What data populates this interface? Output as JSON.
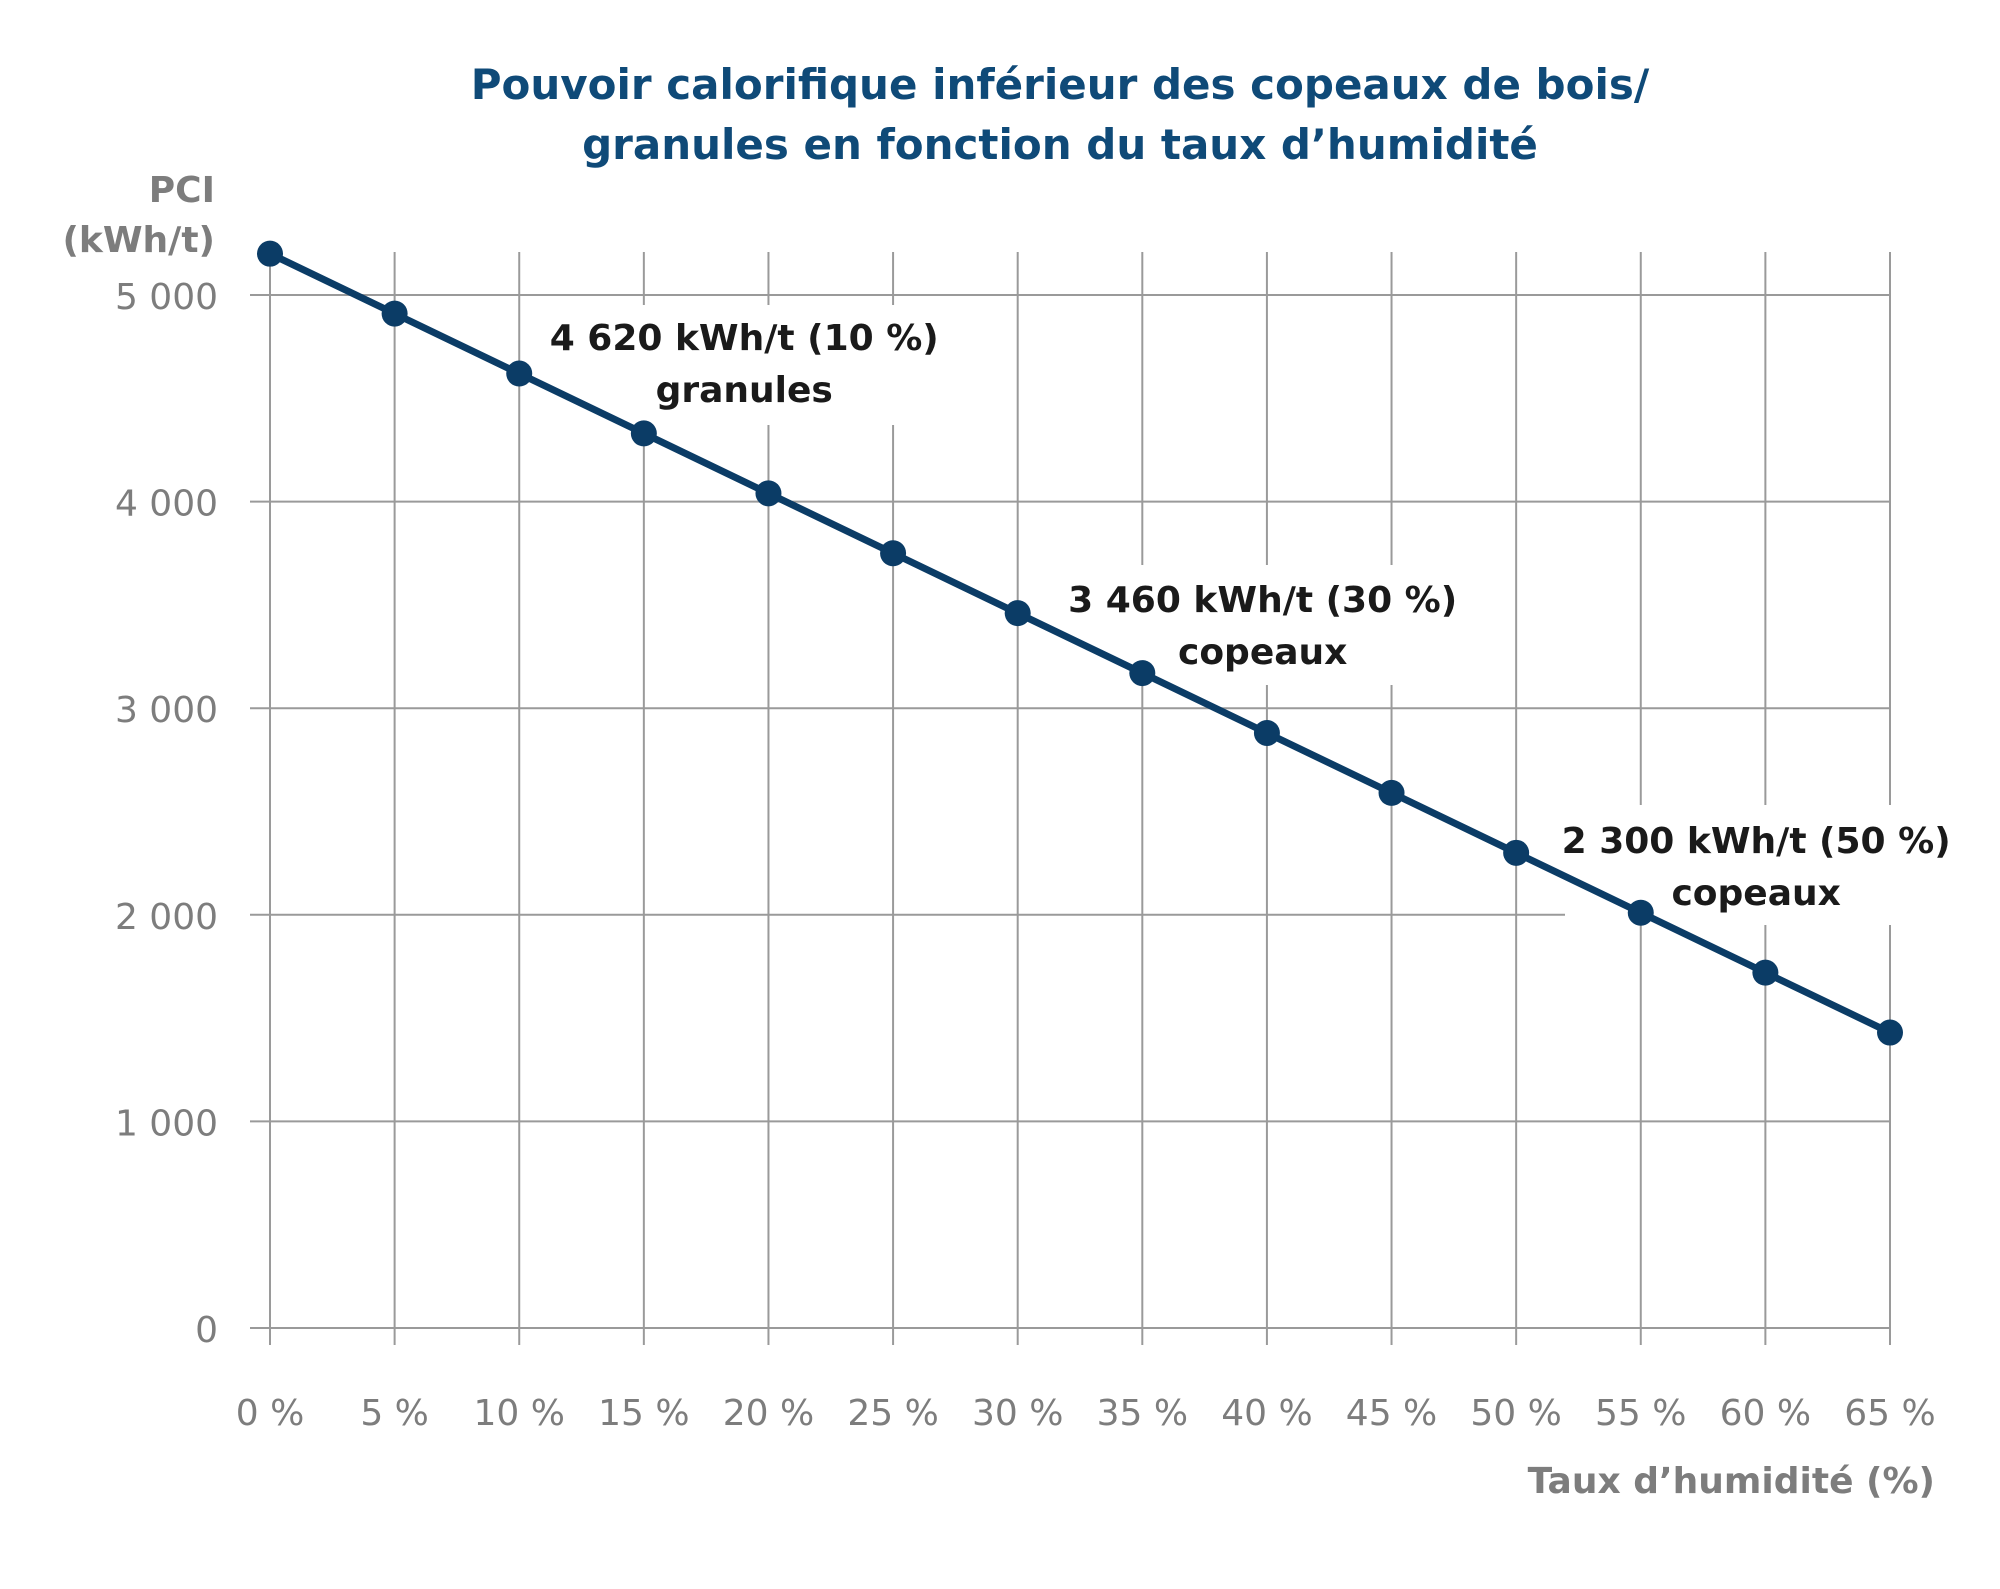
{
  "chart_data": {
    "type": "line",
    "title_lines": [
      "Pouvoir calorifique inférieur des copeaux de bois/",
      "granules en fonction du taux d’humidité"
    ],
    "ylabel_lines": [
      "PCI",
      "(kWh/t)"
    ],
    "xlabel": "Taux d’humidité (%)",
    "x": [
      0,
      5,
      10,
      15,
      20,
      25,
      30,
      35,
      40,
      45,
      50,
      55,
      60,
      65
    ],
    "x_tick_labels": [
      "0 %",
      "5 %",
      "10 %",
      "15 %",
      "20 %",
      "25 %",
      "30 %",
      "35 %",
      "40 %",
      "45 %",
      "50 %",
      "55 %",
      "60 %",
      "65 %"
    ],
    "y_ticks": [
      0,
      1000,
      2000,
      3000,
      4000,
      5000
    ],
    "y_tick_labels": [
      "0",
      "1 000",
      "2 000",
      "3 000",
      "4 000",
      "5 000"
    ],
    "xlim": [
      0,
      65
    ],
    "ylim": [
      0,
      5000
    ],
    "grid": true,
    "series": [
      {
        "values": [
          5200,
          4910,
          4620,
          4330,
          4040,
          3750,
          3460,
          3170,
          2880,
          2590,
          2300,
          2010,
          1720,
          1430
        ],
        "color": "#0b3c66"
      }
    ],
    "annotations": [
      {
        "x": 10,
        "lines": [
          "4 620 kWh/t (10 %)",
          "granules"
        ]
      },
      {
        "x": 30,
        "lines": [
          "3 460 kWh/t (30 %)",
          "copeaux"
        ]
      },
      {
        "x": 50,
        "lines": [
          "2 300 kWh/t (50 %)",
          "copeaux"
        ]
      }
    ],
    "colors": {
      "title": "#0f4a78",
      "axis_text": "#7d7d7d",
      "grid": "#9a9a9a",
      "line": "#0b3c66",
      "annotation_text": "#1a1a1a"
    }
  }
}
